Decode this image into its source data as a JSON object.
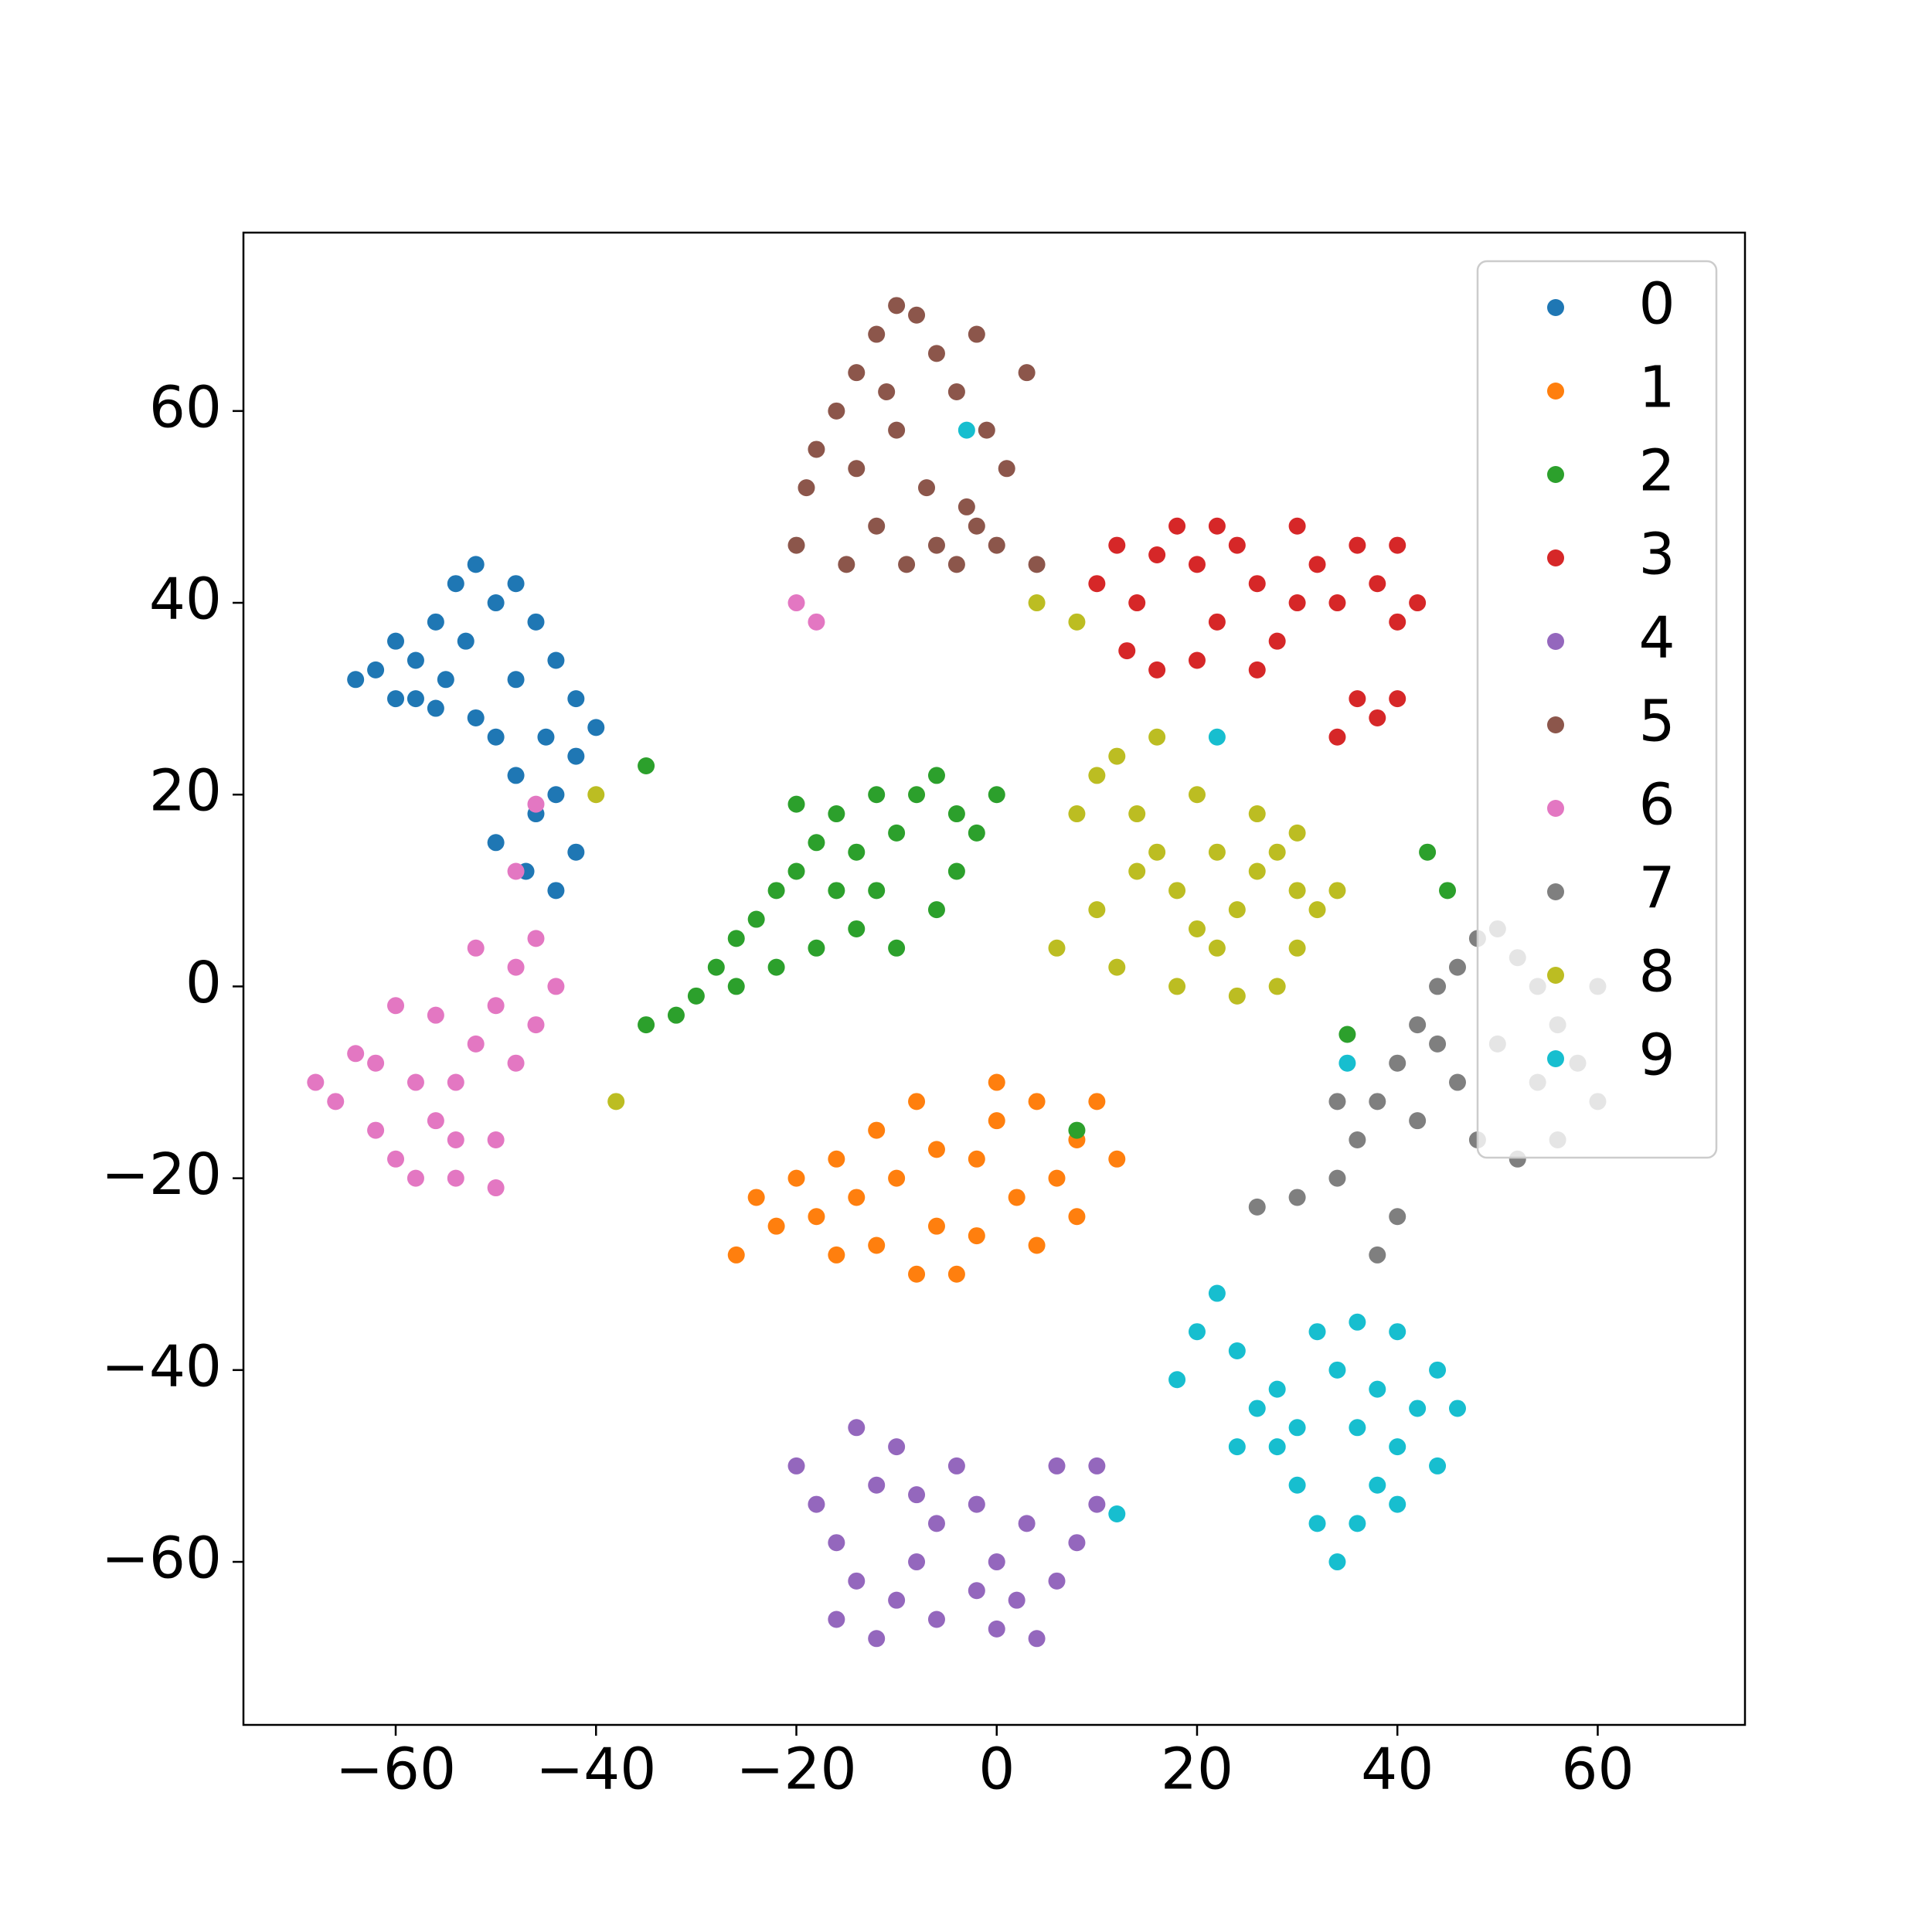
{
  "chart_data": {
    "type": "scatter",
    "xlim": [
      -75.2,
      74.7
    ],
    "ylim": [
      -77,
      78.6
    ],
    "xticks": [
      {
        "value": -60,
        "label": "−60"
      },
      {
        "value": -40,
        "label": "−40"
      },
      {
        "value": -20,
        "label": "−20"
      },
      0,
      20,
      40,
      60
    ],
    "yticks": [
      {
        "value": -60,
        "label": "−60"
      },
      {
        "value": -40,
        "label": "−40"
      },
      {
        "value": -20,
        "label": "−20"
      },
      0,
      20,
      40,
      60
    ],
    "legend": "upper right",
    "series": [
      {
        "name": "0",
        "color": "#1f77b4",
        "x": [
          -62,
          -60,
          -58,
          -56,
          -54,
          -52,
          -50,
          -48,
          -46,
          -44,
          -42,
          -40,
          -42,
          -44,
          -46,
          -48,
          -50,
          -52,
          -55,
          -58,
          -60,
          -50,
          -47,
          -44,
          -42,
          -53,
          -45,
          -48,
          -64,
          -56
        ],
        "values": [
          33,
          36,
          30,
          38,
          42,
          44,
          40,
          42,
          38,
          34,
          30,
          27,
          24,
          20,
          18,
          22,
          26,
          28,
          32,
          34,
          30,
          15,
          12,
          10,
          14,
          36,
          26,
          32,
          32,
          29
        ]
      },
      {
        "name": "1",
        "color": "#ff7f0e",
        "x": [
          -26,
          -24,
          -22,
          -20,
          -18,
          -16,
          -14,
          -12,
          -10,
          -8,
          -6,
          -4,
          -2,
          0,
          2,
          4,
          6,
          8,
          10,
          12,
          -8,
          -12,
          -2,
          4,
          -16,
          0,
          -6,
          8
        ],
        "values": [
          -28,
          -22,
          -25,
          -20,
          -24,
          -18,
          -22,
          -15,
          -20,
          -12,
          -25,
          -30,
          -18,
          -14,
          -22,
          -12,
          -20,
          -16,
          -12,
          -18,
          -30,
          -27,
          -26,
          -27,
          -28,
          -10,
          -17,
          -24
        ]
      },
      {
        "name": "2",
        "color": "#2ca02c",
        "x": [
          -35,
          -32,
          -30,
          -28,
          -26,
          -24,
          -22,
          -20,
          -18,
          -16,
          -14,
          -12,
          -10,
          -8,
          -6,
          -4,
          -2,
          0,
          -14,
          -18,
          -22,
          -10,
          -6,
          -20,
          -12,
          -4,
          -26,
          -16,
          43,
          45,
          35,
          8,
          -35
        ],
        "values": [
          -4,
          -3,
          -1,
          2,
          5,
          7,
          10,
          12,
          15,
          18,
          14,
          10,
          16,
          20,
          22,
          18,
          16,
          20,
          6,
          4,
          2,
          4,
          8,
          19,
          20,
          12,
          0,
          10,
          14,
          10,
          -5,
          -15,
          23
        ]
      },
      {
        "name": "3",
        "color": "#d62728",
        "x": [
          10,
          12,
          14,
          16,
          18,
          20,
          22,
          24,
          26,
          28,
          30,
          32,
          34,
          36,
          38,
          40,
          42,
          36,
          38,
          40,
          34,
          20,
          16,
          26,
          30,
          40,
          13,
          22
        ],
        "values": [
          42,
          46,
          40,
          45,
          48,
          44,
          38,
          46,
          42,
          36,
          48,
          44,
          40,
          46,
          42,
          38,
          40,
          30,
          28,
          30,
          26,
          34,
          33,
          33,
          40,
          46,
          35,
          48
        ]
      },
      {
        "name": "4",
        "color": "#9467bd",
        "x": [
          -20,
          -18,
          -16,
          -14,
          -16,
          -12,
          -10,
          -8,
          -6,
          -4,
          -2,
          0,
          2,
          4,
          6,
          8,
          10,
          10,
          -10,
          -12,
          -6,
          0,
          -14,
          6,
          -2,
          -8,
          3
        ],
        "values": [
          -50,
          -54,
          -58,
          -62,
          -66,
          -68,
          -64,
          -60,
          -56,
          -50,
          -54,
          -60,
          -64,
          -68,
          -62,
          -58,
          -54,
          -50,
          -48,
          -52,
          -66,
          -67,
          -46,
          -50,
          -63,
          -53,
          -56
        ]
      },
      {
        "name": "5",
        "color": "#8c564b",
        "x": [
          -20,
          -19,
          -18,
          -16,
          -14,
          -12,
          -10,
          -8,
          -6,
          -4,
          -2,
          -1,
          1,
          -3,
          -6,
          -9,
          -12,
          -14,
          -10,
          -7,
          -4,
          0,
          4,
          3,
          -15,
          -11,
          -2
        ],
        "values": [
          46,
          52,
          56,
          60,
          64,
          68,
          71,
          70,
          66,
          62,
          68,
          58,
          54,
          50,
          46,
          44,
          48,
          54,
          58,
          52,
          44,
          46,
          44,
          64,
          44,
          62,
          48
        ]
      },
      {
        "name": "6",
        "color": "#e377c2",
        "x": [
          -68,
          -66,
          -64,
          -62,
          -60,
          -58,
          -56,
          -54,
          -52,
          -50,
          -48,
          -46,
          -44,
          -46,
          -50,
          -50,
          -54,
          -58,
          -62,
          -56,
          -52,
          -60,
          -48,
          -54,
          -20,
          -18,
          -48,
          -46
        ],
        "values": [
          -10,
          -12,
          -7,
          -15,
          -18,
          -20,
          -14,
          -10,
          -6,
          -2,
          2,
          5,
          0,
          -4,
          -16,
          -21,
          -20,
          -10,
          -8,
          -3,
          4,
          -2,
          -8,
          -16,
          40,
          38,
          12,
          19
        ]
      },
      {
        "name": "7",
        "color": "#7f7f7f",
        "x": [
          26,
          30,
          34,
          36,
          38,
          40,
          42,
          44,
          46,
          48,
          50,
          52,
          54,
          56,
          58,
          60,
          56,
          52,
          48,
          46,
          44,
          50,
          54,
          60,
          38,
          40,
          42,
          34
        ],
        "values": [
          -23,
          -22,
          -20,
          -16,
          -12,
          -8,
          -4,
          0,
          2,
          5,
          6,
          3,
          0,
          -4,
          -8,
          -12,
          -16,
          -18,
          -16,
          -10,
          -6,
          -6,
          -10,
          0,
          -28,
          -24,
          -14,
          -12
        ]
      },
      {
        "name": "8",
        "color": "#bcbd22",
        "x": [
          8,
          10,
          12,
          14,
          16,
          18,
          20,
          22,
          24,
          26,
          28,
          30,
          32,
          34,
          30,
          28,
          24,
          18,
          12,
          10,
          14,
          16,
          20,
          22,
          26,
          30,
          6,
          4,
          8,
          -40,
          -38
        ],
        "values": [
          18,
          22,
          24,
          18,
          14,
          10,
          6,
          4,
          8,
          12,
          14,
          10,
          8,
          10,
          4,
          0,
          -1,
          0,
          2,
          8,
          12,
          26,
          20,
          14,
          18,
          16,
          4,
          40,
          38,
          20,
          -12
        ]
      },
      {
        "name": "9",
        "color": "#17becf",
        "x": [
          18,
          20,
          22,
          24,
          26,
          28,
          30,
          32,
          34,
          36,
          38,
          40,
          42,
          44,
          46,
          44,
          40,
          36,
          34,
          32,
          36,
          40,
          28,
          30,
          24,
          38,
          12,
          -3,
          22,
          35
        ],
        "values": [
          -41,
          -36,
          -32,
          -38,
          -44,
          -48,
          -52,
          -56,
          -60,
          -56,
          -52,
          -48,
          -44,
          -40,
          -44,
          -50,
          -54,
          -46,
          -40,
          -36,
          -35,
          -36,
          -42,
          -46,
          -48,
          -42,
          -55,
          58,
          26,
          -8
        ]
      }
    ]
  }
}
